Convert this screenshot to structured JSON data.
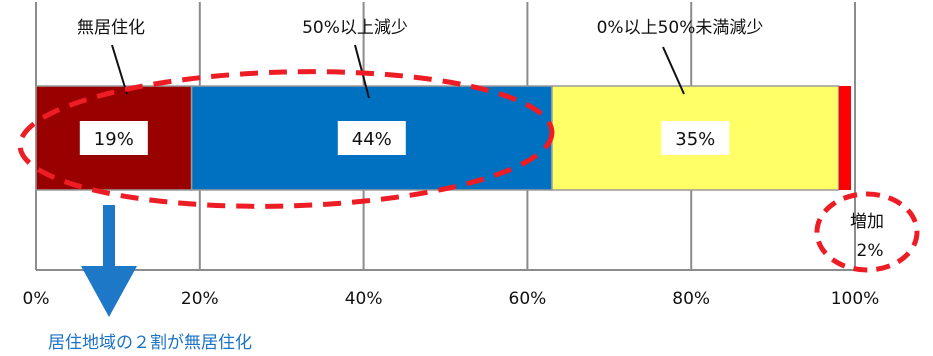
{
  "chart_data": {
    "type": "bar",
    "orientation": "horizontal-stacked",
    "xlim": [
      0,
      100
    ],
    "x_ticks": [
      "0%",
      "20%",
      "40%",
      "60%",
      "80%",
      "100%"
    ],
    "grid": true,
    "series": [
      {
        "name": "無居住化",
        "value": 19,
        "label": "19%",
        "color": "#990000"
      },
      {
        "name": "50%以上減少",
        "value": 44,
        "label": "44%",
        "color": "#0070c0"
      },
      {
        "name": "0%以上50%未満減少",
        "value": 35,
        "label": "35%",
        "color": "#ffff66"
      },
      {
        "name": "増加",
        "value": 2,
        "label": "2%",
        "color": "#ff0000"
      }
    ],
    "annotations": {
      "increase_label": "増加",
      "increase_value": "2%",
      "note": "居住地域の２割が無居住化"
    },
    "colors": {
      "dashed_oval": "#ee1c24",
      "arrow": "#1e78c8",
      "grid": "#8c8c8c"
    }
  }
}
